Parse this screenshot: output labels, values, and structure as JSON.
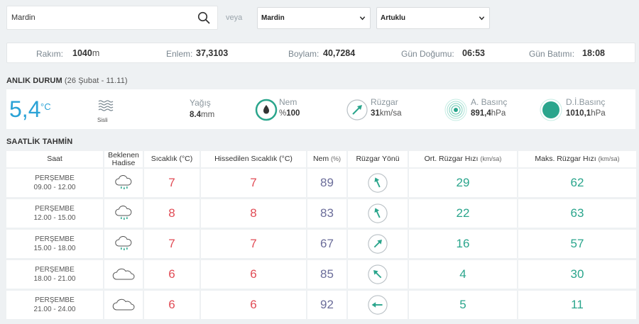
{
  "search": {
    "value": "Mardin"
  },
  "veya": "veya",
  "selects": {
    "il": "Mardin",
    "ilce": "Artuklu"
  },
  "info": {
    "rakim_label": "Rakım:",
    "rakim_value": "1040",
    "rakim_unit": "m",
    "enlem_label": "Enlem:",
    "enlem_value": "37,3103",
    "boylam_label": "Boylam:",
    "boylam_value": "40,7284",
    "gundogumu_label": "Gün Doğumu:",
    "gundogumu_value": "06:53",
    "gunbatimi_label": "Gün Batımı:",
    "gunbatimi_value": "18:08"
  },
  "current": {
    "title": "ANLIK DURUM",
    "subtitle": "(26 Şubat - 11.11)",
    "temperature": "5,4",
    "temp_unit": "°C",
    "condition": "Sisli",
    "yagis_label": "Yağış",
    "yagis_value": "8.4",
    "yagis_unit": "mm",
    "nem_label": "Nem",
    "nem_prefix": "%",
    "nem_value": "100",
    "ruzgar_label": "Rüzgar",
    "ruzgar_value": "31",
    "ruzgar_unit": "km/sa",
    "abasinc_label": "A. Basınç",
    "abasinc_value": "891,4",
    "abasinc_unit": "hPa",
    "dibasinc_label": "D.İ.Basınç",
    "dibasinc_value": "1010,1",
    "dibasinc_unit": "hPa"
  },
  "colors": {
    "accent": "#2aa2d6",
    "teal": "#2aa58c",
    "red": "#e14b55",
    "purple": "#6b6d9a"
  },
  "forecast": {
    "title": "SAATLİK TAHMİN",
    "headers": {
      "saat": "Saat",
      "hadise_1": "Beklenen",
      "hadise_2": "Hadise",
      "sicaklik": "Sıcaklık (°C)",
      "hissedilen": "Hissedilen Sıcaklık (°C)",
      "nem": "Nem",
      "nem_unit": "(%)",
      "yon": "Rüzgar Yönü",
      "ort": "Ort. Rüzgar Hızı",
      "ort_unit": "(km/sa)",
      "maks": "Maks. Rüzgar Hızı",
      "maks_unit": "(km/sa)"
    },
    "rows": [
      {
        "day": "PERŞEMBE",
        "time": "09.00 - 12.00",
        "icon": "rain-cloud-icon",
        "temp": "7",
        "feels": "7",
        "hum": "89",
        "wind_icon": "wind-arrow-nnw-icon",
        "avg": "29",
        "max": "62"
      },
      {
        "day": "PERŞEMBE",
        "time": "12.00 - 15.00",
        "icon": "rain-cloud-icon",
        "temp": "8",
        "feels": "8",
        "hum": "83",
        "wind_icon": "wind-arrow-nnw-icon",
        "avg": "22",
        "max": "63"
      },
      {
        "day": "PERŞEMBE",
        "time": "15.00 - 18.00",
        "icon": "rain-cloud-icon",
        "temp": "7",
        "feels": "7",
        "hum": "67",
        "wind_icon": "wind-arrow-ne-icon",
        "avg": "16",
        "max": "57"
      },
      {
        "day": "PERŞEMBE",
        "time": "18.00 - 21.00",
        "icon": "cloud-icon",
        "temp": "6",
        "feels": "6",
        "hum": "85",
        "wind_icon": "wind-arrow-nw-icon",
        "avg": "4",
        "max": "30"
      },
      {
        "day": "PERŞEMBE",
        "time": "21.00 - 24.00",
        "icon": "cloud-icon",
        "temp": "6",
        "feels": "6",
        "hum": "92",
        "wind_icon": "wind-arrow-w-icon",
        "avg": "5",
        "max": "11"
      }
    ]
  }
}
